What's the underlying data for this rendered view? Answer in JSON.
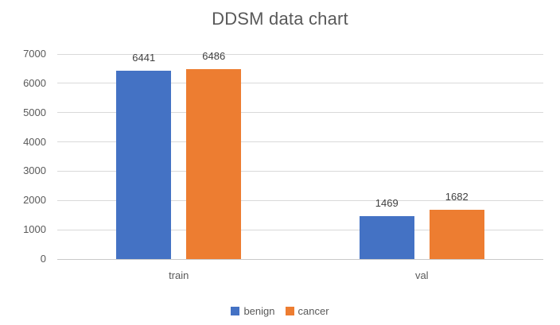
{
  "chart_data": {
    "type": "bar",
    "title": "DDSM data chart",
    "categories": [
      "train",
      "val"
    ],
    "series": [
      {
        "name": "benign",
        "color": "#4472C4",
        "values": [
          6441,
          1469
        ]
      },
      {
        "name": "cancer",
        "color": "#ED7D31",
        "values": [
          6486,
          1682
        ]
      }
    ],
    "data_labels": [
      [
        "6441",
        "1469"
      ],
      [
        "6486",
        "1682"
      ]
    ],
    "ylim": [
      0,
      7000
    ],
    "ytick_interval": 1000,
    "ytick_labels": [
      "0",
      "1000",
      "2000",
      "3000",
      "4000",
      "5000",
      "6000",
      "7000"
    ],
    "grid": true,
    "legend_position": "bottom",
    "xlabel": "",
    "ylabel": "",
    "gridline_color": "#D9D9D9",
    "axis_line_color": "#C9C9C9",
    "tick_text_color": "#595959",
    "data_label_color": "#404040",
    "title_color": "#595959"
  }
}
